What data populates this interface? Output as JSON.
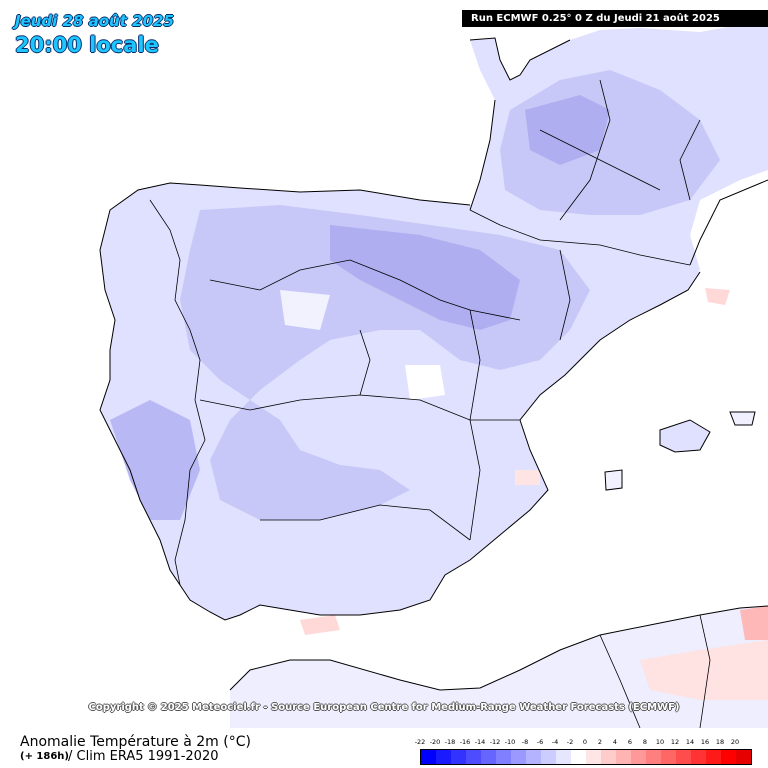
{
  "header": {
    "date": "Jeudi 28 août 2025",
    "time": "20:00 locale",
    "run": "Run ECMWF 0.25° 0 Z du Jeudi 21 août 2025"
  },
  "copyright": "Copyright © 2025 Meteociel.fr - Source European Centre for Medium-Range Weather Forecasts (ECMWF)",
  "footer": {
    "variable": "Anomalie Température à 2m (°C)",
    "lead": "(+ 186h)",
    "climatology": "/ Clim ERA5 1991-2020"
  },
  "scale": {
    "labels": [
      "-22",
      "-20",
      "-18",
      "-16",
      "-14",
      "-12",
      "-10",
      "-8",
      "-6",
      "-4",
      "-2",
      "0",
      "2",
      "4",
      "6",
      "8",
      "10",
      "12",
      "14",
      "16",
      "18",
      "20"
    ],
    "colors": [
      "#0000ff",
      "#1a1aff",
      "#3333ff",
      "#4d4dff",
      "#6666ff",
      "#7f7fff",
      "#9999ff",
      "#b3b3ff",
      "#ccccff",
      "#e6e6ff",
      "#ffffff",
      "#ffe6e6",
      "#ffcccc",
      "#ffb3b3",
      "#ff9999",
      "#ff7f7f",
      "#ff6666",
      "#ff4d4d",
      "#ff3333",
      "#ff1a1a",
      "#ff0000",
      "#e60000"
    ]
  },
  "map_colors": {
    "land_anomaly_light": "#e0e0ff",
    "land_anomaly_mid": "#c8c8f8",
    "land_anomaly_strong": "#aeaef0",
    "warm_anomaly": "#ffd8d8",
    "coast": "#000000",
    "border": "#000000"
  }
}
